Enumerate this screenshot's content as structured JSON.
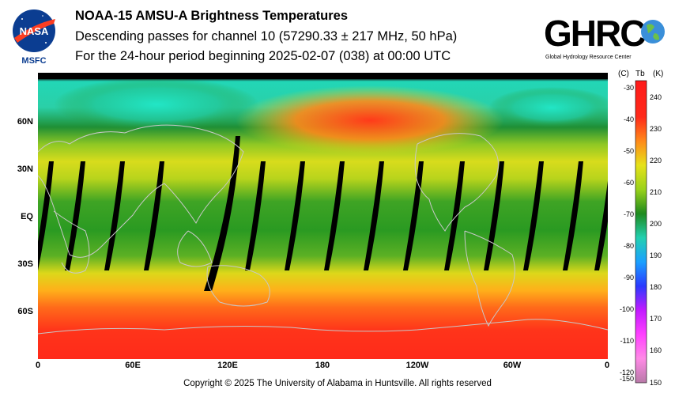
{
  "header": {
    "title": "NOAA-15 AMSU-A Brightness Temperatures",
    "subtitle": "Descending passes for channel 10 (57290.33 ± 217 MHz, 50 hPa)",
    "period": "For the 24-hour period beginning 2025-02-07 (038) at 00:00 UTC"
  },
  "logos": {
    "nasa_text": "NASA",
    "nasa_sub": "MSFC",
    "ghrc_text": "GHRC",
    "ghrc_sub": "Global Hydrology Resource Center"
  },
  "map": {
    "x_ticks": [
      "0",
      "60E",
      "120E",
      "180",
      "120W",
      "60W",
      "0"
    ],
    "y_ticks": [
      "60N",
      "30N",
      "EQ",
      "30S",
      "60S"
    ]
  },
  "colorbar": {
    "unit_c": "(C)",
    "unit_tb": "Tb",
    "unit_k": "(K)",
    "celsius_ticks": [
      "-30",
      "-40",
      "-50",
      "-60",
      "-70",
      "-80",
      "-90",
      "-100",
      "-110",
      "-120",
      "-150"
    ],
    "kelvin_ticks": [
      "240",
      "230",
      "220",
      "210",
      "200",
      "190",
      "180",
      "170",
      "160",
      "150"
    ]
  },
  "footer": "Copyright © 2025 The University of Alabama in Huntsville.  All rights reserved",
  "colors": {
    "warm": "#ff2a1a",
    "orange": "#ff9a1a",
    "yellow": "#e6e21a",
    "green": "#2e9a22",
    "cyan": "#22e6c2",
    "swath_gap": "#000000"
  }
}
